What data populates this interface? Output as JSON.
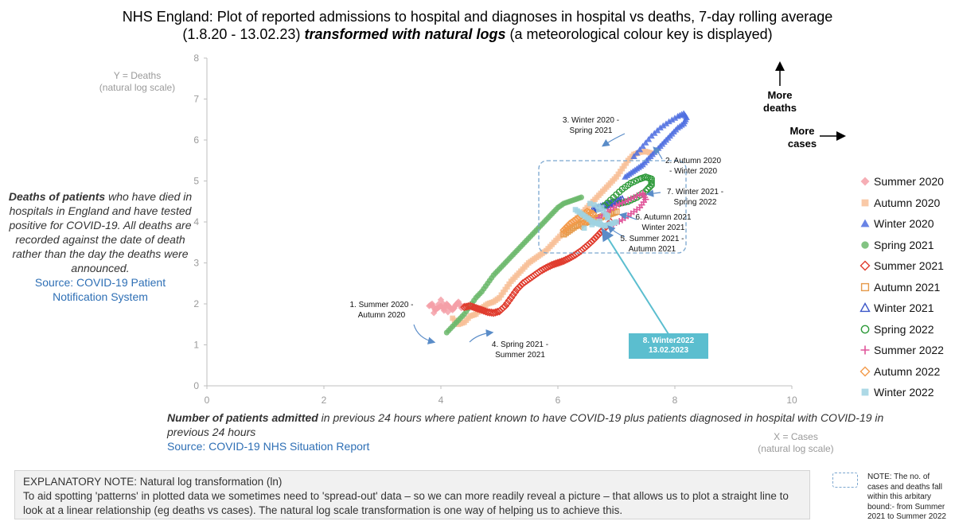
{
  "title": {
    "line1": "NHS England: Plot of reported admissions to hospital and diagnoses in hospital vs deaths, 7-day rolling average",
    "line2_a": "(1.8.20 - 13.02.23) ",
    "line2_b": "transformed with natural logs",
    "line2_c": " (a meteorological colour key is displayed)"
  },
  "axis_labels": {
    "y_line1": "Y = Deaths",
    "y_line2": "(natural log scale)",
    "x_line1": "X = Cases",
    "x_line2": "(natural log scale)"
  },
  "left_note": {
    "bold": "Deaths of patients",
    "text": " who have died in hospitals in England and have tested positive for COVID-19. All deaths are recorded against the date of death rather than the day the deaths were announced.",
    "source_line1": "Source: COVID-19 Patient",
    "source_line2": "Notification System"
  },
  "x_note": {
    "bold": "Number of patients admitted",
    "text": " in previous 24 hours where patient known to have COVID-19 plus patients diagnosed in hospital with COVID-19 in previous 24 hours",
    "source": "Source: COVID-19 NHS Situation Report"
  },
  "explanatory": {
    "heading": "EXPLANATORY NOTE: Natural log transformation (ln)",
    "body": "To aid spotting 'patterns' in plotted data we sometimes need to 'spread-out' data – so we can more readily reveal a picture –  that allows us to plot a straight line to look at a linear relationship (eg deaths vs cases). The natural log scale transformation is one way of helping us to achieve this."
  },
  "bound_note": "NOTE: The no. of cases and deaths fall within this arbitary bound:- from Summer 2021 to Summer 2022",
  "more_deaths_line1": "More",
  "more_deaths_line2": "deaths",
  "more_cases_line1": "More",
  "more_cases_line2": "cases",
  "annotations": {
    "a1_line1": "1. Summer 2020 -",
    "a1_line2": "Autumn 2020",
    "a2_line1": "2. Autumn 2020",
    "a2_line2": "- Winter 2020",
    "a3_line1": "3. Winter 2020 -",
    "a3_line2": "Spring 2021",
    "a4_line1": "4. Spring 2021 -",
    "a4_line2": "Summer 2021",
    "a5_line1": "5. Summer 2021 -",
    "a5_line2": "Autumn 2021",
    "a6_line1": "6. Autumn 2021",
    "a6_line2": "Winter 2021",
    "a7_line1": "7. Winter 2021 -",
    "a7_line2": "Spring 2022",
    "a8_line1": "8. Winter2022",
    "a8_line2": "13.02.2023"
  },
  "chart_data": {
    "type": "scatter",
    "xlim": [
      0,
      10
    ],
    "ylim": [
      0,
      8
    ],
    "x_ticks": [
      0,
      2,
      4,
      6,
      8,
      10
    ],
    "y_ticks": [
      0,
      1,
      2,
      3,
      4,
      5,
      6,
      7,
      8
    ],
    "legend_position": "right",
    "series": [
      {
        "name": "Summer 2020",
        "color": "#f4a0a8",
        "marker": "diamond-filled",
        "points": [
          [
            3.8,
            1.95
          ],
          [
            3.85,
            2.0
          ],
          [
            3.9,
            1.85
          ],
          [
            3.95,
            1.9
          ],
          [
            4.0,
            1.95
          ],
          [
            4.05,
            1.88
          ],
          [
            4.1,
            2.0
          ],
          [
            4.15,
            1.92
          ],
          [
            4.2,
            1.85
          ],
          [
            4.25,
            1.97
          ],
          [
            4.3,
            2.05
          ],
          [
            4.35,
            1.9
          ],
          [
            4.4,
            1.95
          ],
          [
            3.88,
            1.78
          ],
          [
            4.0,
            2.1
          ],
          [
            4.12,
            1.8
          ]
        ]
      },
      {
        "name": "Autumn 2020",
        "color": "#f8bf98",
        "marker": "square-filled",
        "points": [
          [
            4.2,
            1.65
          ],
          [
            4.3,
            1.5
          ],
          [
            4.4,
            1.55
          ],
          [
            4.5,
            1.7
          ],
          [
            4.6,
            1.75
          ],
          [
            4.7,
            1.9
          ],
          [
            4.8,
            2.0
          ],
          [
            4.9,
            2.05
          ],
          [
            5.0,
            2.15
          ],
          [
            5.1,
            2.35
          ],
          [
            5.2,
            2.55
          ],
          [
            5.3,
            2.7
          ],
          [
            5.4,
            2.85
          ],
          [
            5.5,
            3.0
          ],
          [
            5.6,
            3.1
          ],
          [
            5.7,
            3.2
          ],
          [
            5.8,
            3.3
          ],
          [
            5.9,
            3.45
          ],
          [
            6.0,
            3.6
          ],
          [
            6.1,
            3.75
          ],
          [
            6.2,
            3.9
          ],
          [
            6.3,
            4.05
          ],
          [
            6.4,
            4.2
          ],
          [
            6.5,
            4.35
          ],
          [
            6.6,
            4.5
          ],
          [
            6.7,
            4.65
          ],
          [
            6.8,
            4.8
          ],
          [
            6.9,
            4.95
          ],
          [
            7.0,
            5.1
          ],
          [
            7.1,
            5.3
          ],
          [
            7.2,
            5.5
          ],
          [
            7.3,
            5.65
          ],
          [
            7.4,
            5.7
          ],
          [
            7.5,
            5.72
          ],
          [
            7.6,
            5.68
          ]
        ]
      },
      {
        "name": "Winter 2020",
        "color": "#4f6fe0",
        "marker": "triangle-filled",
        "points": [
          [
            7.3,
            5.6
          ],
          [
            7.45,
            5.85
          ],
          [
            7.6,
            6.1
          ],
          [
            7.75,
            6.3
          ],
          [
            7.9,
            6.45
          ],
          [
            8.05,
            6.58
          ],
          [
            8.15,
            6.65
          ],
          [
            8.2,
            6.55
          ],
          [
            8.15,
            6.4
          ],
          [
            8.05,
            6.3
          ],
          [
            7.95,
            6.15
          ],
          [
            7.85,
            6.0
          ],
          [
            7.75,
            5.85
          ],
          [
            7.65,
            5.7
          ],
          [
            7.55,
            5.55
          ],
          [
            7.45,
            5.4
          ],
          [
            7.35,
            5.3
          ],
          [
            7.25,
            5.2
          ],
          [
            7.15,
            5.1
          ]
        ]
      },
      {
        "name": "Spring 2021",
        "color": "#6cb86c",
        "marker": "circle-filled",
        "points": [
          [
            4.1,
            1.3
          ],
          [
            4.2,
            1.45
          ],
          [
            4.3,
            1.6
          ],
          [
            4.4,
            1.75
          ],
          [
            4.5,
            1.95
          ],
          [
            4.6,
            2.15
          ],
          [
            4.7,
            2.3
          ],
          [
            4.8,
            2.5
          ],
          [
            4.9,
            2.7
          ],
          [
            5.0,
            2.85
          ],
          [
            5.1,
            3.0
          ],
          [
            5.2,
            3.15
          ],
          [
            5.3,
            3.3
          ],
          [
            5.4,
            3.45
          ],
          [
            5.5,
            3.6
          ],
          [
            5.6,
            3.75
          ],
          [
            5.7,
            3.9
          ],
          [
            5.8,
            4.05
          ],
          [
            5.9,
            4.2
          ],
          [
            6.0,
            4.35
          ],
          [
            6.1,
            4.45
          ],
          [
            6.2,
            4.5
          ],
          [
            6.3,
            4.55
          ],
          [
            6.4,
            4.6
          ]
        ]
      },
      {
        "name": "Summer 2021",
        "color": "#e03c2e",
        "marker": "diamond-open",
        "points": [
          [
            4.4,
            1.92
          ],
          [
            4.5,
            1.95
          ],
          [
            4.6,
            1.9
          ],
          [
            4.7,
            1.85
          ],
          [
            4.8,
            1.8
          ],
          [
            4.9,
            1.78
          ],
          [
            5.0,
            1.82
          ],
          [
            5.1,
            1.95
          ],
          [
            5.2,
            2.15
          ],
          [
            5.3,
            2.35
          ],
          [
            5.4,
            2.5
          ],
          [
            5.5,
            2.6
          ],
          [
            5.6,
            2.7
          ],
          [
            5.7,
            2.8
          ],
          [
            5.8,
            2.88
          ],
          [
            5.9,
            2.95
          ],
          [
            6.0,
            3.0
          ],
          [
            6.1,
            3.05
          ],
          [
            6.2,
            3.12
          ],
          [
            6.3,
            3.2
          ],
          [
            6.4,
            3.3
          ],
          [
            6.5,
            3.42
          ],
          [
            6.6,
            3.55
          ],
          [
            6.7,
            3.7
          ],
          [
            6.8,
            3.85
          ],
          [
            6.9,
            4.0
          ]
        ]
      },
      {
        "name": "Autumn 2021",
        "color": "#e69a4a",
        "marker": "square-open",
        "points": [
          [
            6.1,
            3.7
          ],
          [
            6.2,
            3.8
          ],
          [
            6.3,
            3.9
          ],
          [
            6.4,
            3.95
          ],
          [
            6.5,
            4.0
          ],
          [
            6.6,
            4.05
          ],
          [
            6.7,
            4.1
          ],
          [
            6.8,
            4.15
          ],
          [
            6.9,
            4.2
          ],
          [
            7.0,
            4.25
          ]
        ]
      },
      {
        "name": "Winter 2021",
        "color": "#3c57c8",
        "marker": "triangle-open",
        "points": [
          [
            6.6,
            4.3
          ],
          [
            6.7,
            4.35
          ],
          [
            6.8,
            4.4
          ],
          [
            6.9,
            4.45
          ],
          [
            7.0,
            4.5
          ],
          [
            7.1,
            4.55
          ]
        ]
      },
      {
        "name": "Spring 2022",
        "color": "#2e9a3a",
        "marker": "circle-open",
        "points": [
          [
            6.8,
            4.4
          ],
          [
            6.95,
            4.6
          ],
          [
            7.1,
            4.8
          ],
          [
            7.25,
            4.95
          ],
          [
            7.4,
            5.05
          ],
          [
            7.5,
            5.1
          ],
          [
            7.6,
            5.05
          ],
          [
            7.6,
            4.9
          ],
          [
            7.5,
            4.75
          ],
          [
            7.35,
            4.6
          ],
          [
            7.2,
            4.5
          ],
          [
            7.05,
            4.45
          ]
        ]
      },
      {
        "name": "Summer 2022",
        "color": "#e0559a",
        "marker": "plus",
        "points": [
          [
            6.7,
            4.1
          ],
          [
            6.85,
            4.25
          ],
          [
            7.0,
            4.4
          ],
          [
            7.15,
            4.5
          ],
          [
            7.3,
            4.6
          ],
          [
            7.45,
            4.7
          ],
          [
            7.5,
            4.55
          ],
          [
            7.4,
            4.35
          ],
          [
            7.25,
            4.2
          ],
          [
            7.1,
            4.05
          ],
          [
            6.95,
            3.95
          ]
        ]
      },
      {
        "name": "Autumn 2022",
        "color": "#f39a4a",
        "marker": "diamond-open",
        "points": [
          [
            6.1,
            3.8
          ],
          [
            6.2,
            3.95
          ],
          [
            6.3,
            4.05
          ],
          [
            6.4,
            4.15
          ],
          [
            6.5,
            4.25
          ],
          [
            6.6,
            4.2
          ],
          [
            6.5,
            4.05
          ],
          [
            6.4,
            3.9
          ]
        ]
      },
      {
        "name": "Winter 2022",
        "color": "#9fd2e2",
        "marker": "square-filled",
        "points": [
          [
            6.3,
            4.3
          ],
          [
            6.4,
            4.2
          ],
          [
            6.5,
            4.1
          ],
          [
            6.6,
            4.0
          ],
          [
            6.7,
            3.95
          ],
          [
            6.8,
            3.9
          ],
          [
            6.9,
            3.95
          ],
          [
            7.0,
            4.0
          ],
          [
            6.55,
            4.45
          ],
          [
            6.75,
            4.35
          ],
          [
            6.85,
            4.1
          ],
          [
            6.45,
            3.85
          ]
        ]
      }
    ]
  }
}
